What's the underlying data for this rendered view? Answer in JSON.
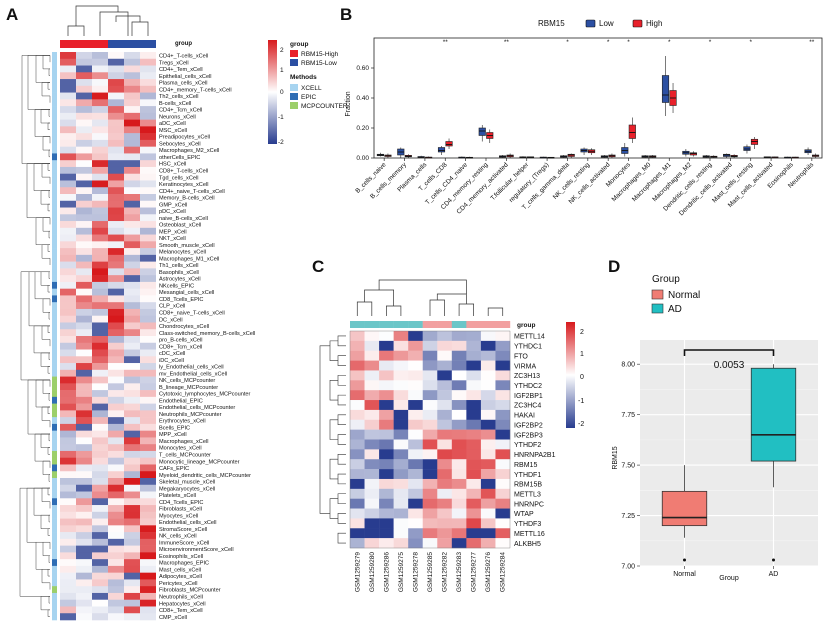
{
  "panels": {
    "a": "A",
    "b": "B",
    "c": "C",
    "d": "D"
  },
  "legend_a": {
    "group_title": "group",
    "group_items": [
      {
        "label": "RBM15-High",
        "color": "#e8202a"
      },
      {
        "label": "RBM15-Low",
        "color": "#2b4fa2"
      }
    ],
    "methods_title": "Methods",
    "methods_items": [
      {
        "label": "XCELL",
        "color": "#a7d4f0"
      },
      {
        "label": "EPIC",
        "color": "#2e6db4"
      },
      {
        "label": "MCPCOUNTER",
        "color": "#9ccf6a"
      }
    ],
    "scale_ticks": [
      "2",
      "1",
      "0",
      "-1",
      "-2"
    ]
  },
  "heatmap_a": {
    "group_label": "group",
    "rows": [
      "CD4+_T-cells_xCell",
      "Tregs_xCell",
      "CD4+_Tem_xCell",
      "Epithelial_cells_xCell",
      "Plasma_cells_xCell",
      "CD4+_memory_T-cells_xCell",
      "Th2_cells_xCell",
      "B-cells_xCell",
      "CD4+_Tcm_xCell",
      "Neurons_xCell",
      "aDC_xCell",
      "MSC_xCell",
      "Preadipocytes_xCell",
      "Sebocytes_xCell",
      "Macrophages_M2_xCell",
      "otherCells_EPIC",
      "HSC_xCell",
      "CD8+_T-cells_xCell",
      "Tgd_cells_xCell",
      "Keratinocytes_xCell",
      "CD4+_naive_T-cells_xCell",
      "Memory_B-cells_xCell",
      "GMP_xCell",
      "pDC_xCell",
      "naive_B-cells_xCell",
      "Osteoblast_xCell",
      "MEP_xCell",
      "NKT_xCell",
      "Smooth_muscle_xCell",
      "Melanocytes_xCell",
      "Macrophages_M1_xCell",
      "Th1_cells_xCell",
      "Basophils_xCell",
      "Astrocytes_xCell",
      "NKcells_EPIC",
      "Mesangial_cells_xCell",
      "CD8_Tcells_EPIC",
      "CLP_xCell",
      "CD8+_naive_T-cells_xCell",
      "DC_xCell",
      "Chondrocytes_xCell",
      "Class-switched_memory_B-cells_xCell",
      "pro_B-cells_xCell",
      "CD8+_Tcm_xCell",
      "cDC_xCell",
      "iDC_xCell",
      "ly_Endothelial_cells_xCell",
      "mv_Endothelial_cells_xCell",
      "NK_cells_MCPcounter",
      "B_lineage_MCPcounter",
      "Cytotoxic_lymphocytes_MCPcounter",
      "Endothelial_EPIC",
      "Endothelial_cells_MCPcounter",
      "Neutrophils_MCPcounter",
      "Erythrocytes_xCell",
      "Bcells_EPIC",
      "MPP_xCell",
      "Macrophages_xCell",
      "Monocytes_xCell",
      "T_cells_MCPcounter",
      "Monocytic_lineage_MCPcounter",
      "CAFs_EPIC",
      "Myeloid_dendritic_cells_MCPcounter",
      "Skeletal_muscle_xCell",
      "Megakaryocytes_xCell",
      "Platelets_xCell",
      "CD4_Tcells_EPIC",
      "Fibroblasts_xCell",
      "Myocytes_xCell",
      "Endothelial_cells_xCell",
      "StromaScore_xCell",
      "NK_cells_xCell",
      "ImmuneScore_xCell",
      "MicroenvironmentScore_xCell",
      "Eosinophils_xCell",
      "Macrophages_EPIC",
      "Mast_cells_xCell",
      "Adipocytes_xCell",
      "Pericytes_xCell",
      "Fibroblasts_MCPcounter",
      "Neutrophils_xCell",
      "Hepatocytes_xCell",
      "CD8+_Tem_xCell",
      "CMP_xCell"
    ]
  },
  "heatmap_c": {
    "group_label": "group",
    "genes": [
      "METTL14",
      "YTHDC1",
      "FTO",
      "VIRMA",
      "ZC3H13",
      "YTHDC2",
      "IGF2BP1",
      "ZC3HC4",
      "HAKAI",
      "IGF2BP2",
      "IGF2BP3",
      "YTHDF2",
      "HNRNPA2B1",
      "RBM15",
      "YTHDF1",
      "RBM15B",
      "METTL3",
      "HNRNPC",
      "WTAP",
      "YTHDF3",
      "METTL16",
      "ALKBH5"
    ],
    "samples": [
      "GSM1259279",
      "GSM1259280",
      "GSM1259286",
      "GSM1259275",
      "GSM1259278",
      "GSM1259285",
      "GSM1259282",
      "GSM1259283",
      "GSM1259277",
      "GSM1259276",
      "GSM1259284"
    ],
    "scale_ticks": [
      "2",
      "1",
      "0",
      "-1",
      "-2"
    ]
  },
  "chart_data": [
    {
      "type": "box",
      "panel": "B",
      "title": "",
      "legend_title": "RBM15",
      "legend": [
        {
          "name": "Low",
          "color": "#2b4fa2"
        },
        {
          "name": "High",
          "color": "#e8202a"
        }
      ],
      "xlabel": "",
      "ylabel": "Fraction",
      "ylim": [
        0,
        0.8
      ],
      "yticks": [
        "0.00",
        "0.20",
        "0.40",
        "0.60"
      ],
      "categories": [
        "B_cells_naive",
        "B_cells_memory",
        "Plasma_cells",
        "T_cells_CD8",
        "T_cells_CD4_naive",
        "CD4_memory_resting",
        "CD4_memory_activated",
        "T.follicular_helper",
        "regulatory_(Tregs)",
        "T_cells_gamma_delta",
        "NK_cells_resting",
        "NK_cells_activated",
        "Monocytes",
        "Macrophages_M0",
        "Macrophages_M1",
        "Macrophages_M2",
        "Dendritic_cells_resting",
        "Dendritic_cells_activated",
        "Mast_cells_resting",
        "Mast_cells_activated",
        "Eosinophils",
        "Neutrophils"
      ],
      "significance": [
        "",
        "",
        "",
        "**",
        "",
        "",
        "**",
        "",
        "",
        "*",
        "",
        "*",
        "*",
        "",
        "*",
        "",
        "*",
        "",
        "*",
        "",
        "",
        "**"
      ],
      "series": [
        {
          "name": "Low",
          "boxes": [
            [
              0.01,
              0.015,
              0.02,
              0.025,
              0.035
            ],
            [
              0.0,
              0.02,
              0.04,
              0.06,
              0.07
            ],
            [
              0.0,
              0.003,
              0.005,
              0.01,
              0.015
            ],
            [
              0.02,
              0.04,
              0.05,
              0.07,
              0.08
            ],
            [
              0.0,
              0.002,
              0.004,
              0.006,
              0.01
            ],
            [
              0.11,
              0.15,
              0.18,
              0.2,
              0.22
            ],
            [
              0.0,
              0.005,
              0.01,
              0.015,
              0.02
            ],
            [
              0.0,
              0.003,
              0.005,
              0.008,
              0.012
            ],
            [
              0.0,
              0.002,
              0.004,
              0.006,
              0.008
            ],
            [
              0.0,
              0.005,
              0.01,
              0.015,
              0.02
            ],
            [
              0.02,
              0.04,
              0.05,
              0.06,
              0.07
            ],
            [
              0.0,
              0.005,
              0.01,
              0.015,
              0.02
            ],
            [
              0.01,
              0.03,
              0.05,
              0.07,
              0.1
            ],
            [
              0.0,
              0.005,
              0.01,
              0.015,
              0.02
            ],
            [
              0.28,
              0.37,
              0.42,
              0.55,
              0.68
            ],
            [
              0.01,
              0.025,
              0.035,
              0.045,
              0.06
            ],
            [
              0.0,
              0.005,
              0.01,
              0.015,
              0.02
            ],
            [
              0.0,
              0.01,
              0.02,
              0.025,
              0.03
            ],
            [
              0.03,
              0.05,
              0.06,
              0.075,
              0.09
            ],
            [
              0.0,
              0.003,
              0.005,
              0.008,
              0.01
            ],
            [
              0.0,
              0.002,
              0.004,
              0.006,
              0.008
            ],
            [
              0.02,
              0.035,
              0.045,
              0.055,
              0.07
            ]
          ]
        },
        {
          "name": "High",
          "boxes": [
            [
              0.0,
              0.01,
              0.015,
              0.02,
              0.03
            ],
            [
              0.0,
              0.008,
              0.012,
              0.018,
              0.025
            ],
            [
              0.0,
              0.002,
              0.004,
              0.006,
              0.01
            ],
            [
              0.06,
              0.08,
              0.09,
              0.11,
              0.13
            ],
            [
              0.0,
              0.002,
              0.003,
              0.005,
              0.008
            ],
            [
              0.1,
              0.13,
              0.15,
              0.17,
              0.19
            ],
            [
              0.0,
              0.008,
              0.015,
              0.02,
              0.03
            ],
            [
              0.0,
              0.003,
              0.005,
              0.008,
              0.01
            ],
            [
              0.0,
              0.002,
              0.003,
              0.005,
              0.007
            ],
            [
              0.0,
              0.01,
              0.02,
              0.025,
              0.03
            ],
            [
              0.02,
              0.035,
              0.045,
              0.055,
              0.065
            ],
            [
              0.0,
              0.008,
              0.015,
              0.02,
              0.03
            ],
            [
              0.1,
              0.13,
              0.17,
              0.22,
              0.27
            ],
            [
              0.0,
              0.005,
              0.01,
              0.015,
              0.02
            ],
            [
              0.3,
              0.35,
              0.4,
              0.45,
              0.5
            ],
            [
              0.01,
              0.02,
              0.03,
              0.035,
              0.045
            ],
            [
              0.0,
              0.005,
              0.01,
              0.012,
              0.018
            ],
            [
              0.0,
              0.008,
              0.012,
              0.018,
              0.025
            ],
            [
              0.06,
              0.09,
              0.11,
              0.125,
              0.14
            ],
            [
              0.0,
              0.003,
              0.005,
              0.007,
              0.01
            ],
            [
              0.0,
              0.002,
              0.004,
              0.006,
              0.008
            ],
            [
              0.0,
              0.01,
              0.015,
              0.02,
              0.03
            ]
          ]
        }
      ]
    },
    {
      "type": "box",
      "panel": "D",
      "legend_title": "Group",
      "legend": [
        {
          "name": "Normal",
          "color": "#f07c73"
        },
        {
          "name": "AD",
          "color": "#21bfc2"
        }
      ],
      "categories": [
        "Normal",
        "AD"
      ],
      "xlabel": "Group",
      "ylabel": "RBM15",
      "ylim": [
        7.0,
        8.12
      ],
      "yticks": [
        "7.00",
        "7.25",
        "7.50",
        "7.75",
        "8.00"
      ],
      "boxes": [
        [
          7.14,
          7.2,
          7.24,
          7.37,
          7.5
        ],
        [
          7.39,
          7.52,
          7.65,
          7.98,
          8.0
        ]
      ],
      "outliers": [
        [
          7.03
        ],
        [
          7.03
        ]
      ],
      "pvalue": "0.0053"
    }
  ]
}
